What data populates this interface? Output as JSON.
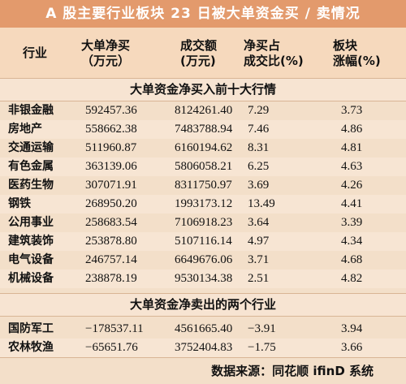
{
  "title": "A 股主要行业板块 23 日被大单资金买 / 卖情况",
  "header": {
    "industry": "行业",
    "net_buy": [
      "大单净买",
      "（万元）"
    ],
    "turnover": [
      "成交额",
      "(万元)"
    ],
    "ratio": [
      "净买占",
      "成交比(%)"
    ],
    "change": [
      "板块",
      "涨幅(%)"
    ]
  },
  "section_top": "大单资金净买入前十大行情",
  "top_rows": [
    [
      "非银金融",
      "592457.36",
      "8124261.40",
      "7.29",
      "3.73"
    ],
    [
      "房地产",
      "558662.38",
      "7483788.94",
      "7.46",
      "4.86"
    ],
    [
      "交通运输",
      "511960.87",
      "6160194.62",
      "8.31",
      "4.81"
    ],
    [
      "有色金属",
      "363139.06",
      "5806058.21",
      "6.25",
      "4.63"
    ],
    [
      "医药生物",
      "307071.91",
      "8311750.97",
      "3.69",
      "4.26"
    ],
    [
      "钢铁",
      "268950.20",
      "1993173.12",
      "13.49",
      "4.41"
    ],
    [
      "公用事业",
      "258683.54",
      "7106918.23",
      "3.64",
      "3.39"
    ],
    [
      "建筑装饰",
      "253878.80",
      "5107116.14",
      "4.97",
      "4.34"
    ],
    [
      "电气设备",
      "246757.14",
      "6649676.06",
      "3.71",
      "4.68"
    ],
    [
      "机械设备",
      "238878.19",
      "9530134.38",
      "2.51",
      "4.82"
    ]
  ],
  "section_bottom": "大单资金净卖出的两个行业",
  "bottom_rows": [
    [
      "国防军工",
      "−178537.11",
      "4561665.40",
      "−3.91",
      "3.94"
    ],
    [
      "农林牧渔",
      "−65651.76",
      "3752404.83",
      "−1.75",
      "3.66"
    ]
  ],
  "source": "数据来源：同花顺 ifinD 系统"
}
